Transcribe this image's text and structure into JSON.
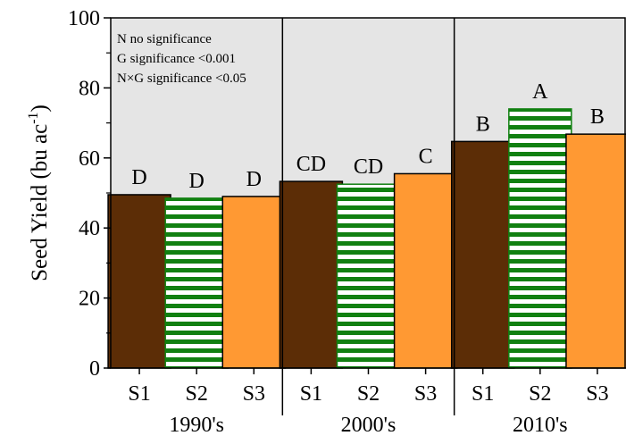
{
  "chart_data": {
    "type": "bar",
    "ylabel_main": "Seed Yield (bu ac",
    "ylabel_sup": "-1",
    "ylabel_close": ")",
    "ylim": [
      0,
      100
    ],
    "yticks": [
      "0",
      "20",
      "40",
      "60",
      "80",
      "100"
    ],
    "grid": false,
    "background": "#e5e5e5",
    "annotations": [
      "N  no significance",
      "G  significance <0.001",
      "N×G significance <0.05"
    ],
    "groups": [
      {
        "label": "1990's",
        "bars": [
          {
            "category": "S1",
            "value": 49.5,
            "letter": "D"
          },
          {
            "category": "S2",
            "value": 48.5,
            "letter": "D"
          },
          {
            "category": "S3",
            "value": 49.0,
            "letter": "D"
          }
        ]
      },
      {
        "label": "2000's",
        "bars": [
          {
            "category": "S1",
            "value": 53.3,
            "letter": "CD"
          },
          {
            "category": "S2",
            "value": 52.5,
            "letter": "CD"
          },
          {
            "category": "S3",
            "value": 55.5,
            "letter": "C"
          }
        ]
      },
      {
        "label": "2010's",
        "bars": [
          {
            "category": "S1",
            "value": 64.7,
            "letter": "B"
          },
          {
            "category": "S2",
            "value": 74.0,
            "letter": "A"
          },
          {
            "category": "S3",
            "value": 66.8,
            "letter": "B"
          }
        ]
      }
    ],
    "colors": {
      "S1": "#5c2d06",
      "S2": "#118011",
      "S2_stripe_bg": "#ffffff",
      "S3": "#ff9933"
    }
  }
}
